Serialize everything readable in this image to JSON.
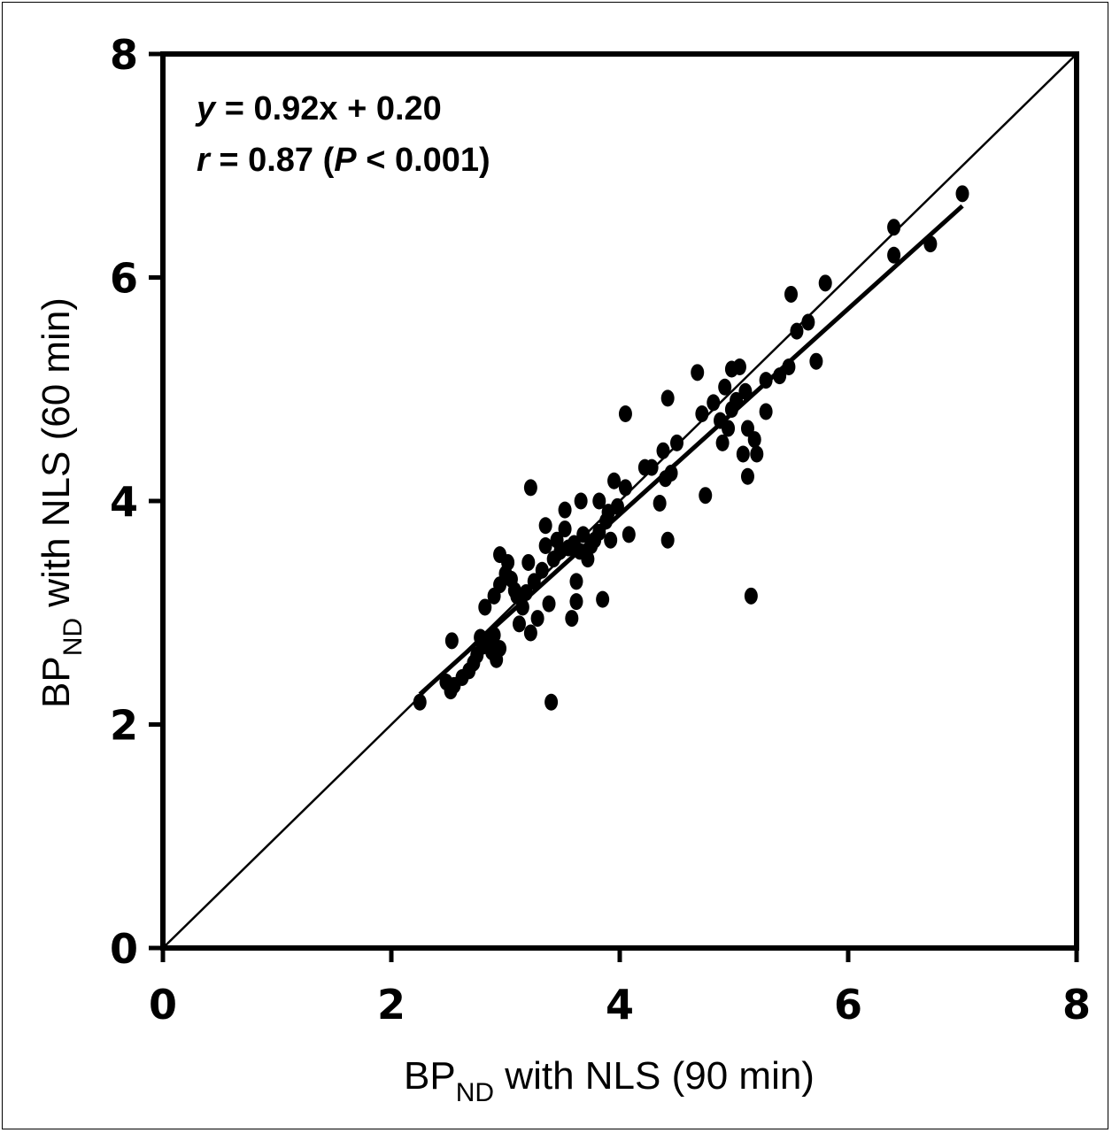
{
  "chart_data": {
    "type": "scatter",
    "title": "",
    "xlabel": {
      "main": "BP",
      "sub": "ND",
      "rest": " with NLS (90 min)"
    },
    "ylabel": {
      "main": "BP",
      "sub": "ND",
      "rest": " with NLS (60 min)"
    },
    "xlim": [
      0,
      8
    ],
    "ylim": [
      0,
      8
    ],
    "xticks": [
      "0",
      "2",
      "4",
      "6",
      "8"
    ],
    "yticks": [
      "0",
      "2",
      "4",
      "6",
      "8"
    ],
    "annotation": {
      "line1": {
        "var": "y",
        "rest": " = 0.92x + 0.20"
      },
      "line2": {
        "var": "r",
        "mid": " = 0.87 (",
        "var2": "P",
        "rest": " < 0.001)"
      }
    },
    "regression": {
      "slope": 0.92,
      "intercept": 0.2,
      "x_range": [
        2.25,
        7.0
      ]
    },
    "identity_line": {
      "x_range": [
        0,
        8
      ]
    },
    "points": [
      [
        2.25,
        2.2
      ],
      [
        2.48,
        2.38
      ],
      [
        2.52,
        2.3
      ],
      [
        2.55,
        2.35
      ],
      [
        2.53,
        2.75
      ],
      [
        2.62,
        2.42
      ],
      [
        2.68,
        2.48
      ],
      [
        2.72,
        2.55
      ],
      [
        2.75,
        2.62
      ],
      [
        2.78,
        2.78
      ],
      [
        2.8,
        2.7
      ],
      [
        2.82,
        3.05
      ],
      [
        2.85,
        2.72
      ],
      [
        2.88,
        2.65
      ],
      [
        2.9,
        2.8
      ],
      [
        2.92,
        2.58
      ],
      [
        2.95,
        2.68
      ],
      [
        2.9,
        3.15
      ],
      [
        2.95,
        3.25
      ],
      [
        2.95,
        3.52
      ],
      [
        3.0,
        3.35
      ],
      [
        3.02,
        3.45
      ],
      [
        3.05,
        3.3
      ],
      [
        3.08,
        3.2
      ],
      [
        3.1,
        3.15
      ],
      [
        3.12,
        2.9
      ],
      [
        3.15,
        3.05
      ],
      [
        3.18,
        3.18
      ],
      [
        3.2,
        3.45
      ],
      [
        3.22,
        2.82
      ],
      [
        3.22,
        4.12
      ],
      [
        3.25,
        3.28
      ],
      [
        3.28,
        2.95
      ],
      [
        3.32,
        3.38
      ],
      [
        3.35,
        3.6
      ],
      [
        3.35,
        3.78
      ],
      [
        3.38,
        3.08
      ],
      [
        3.4,
        2.2
      ],
      [
        3.42,
        3.48
      ],
      [
        3.45,
        3.65
      ],
      [
        3.48,
        3.55
      ],
      [
        3.52,
        3.75
      ],
      [
        3.52,
        3.92
      ],
      [
        3.55,
        3.58
      ],
      [
        3.58,
        2.95
      ],
      [
        3.6,
        3.62
      ],
      [
        3.62,
        3.28
      ],
      [
        3.62,
        3.1
      ],
      [
        3.65,
        3.55
      ],
      [
        3.66,
        4.0
      ],
      [
        3.68,
        3.7
      ],
      [
        3.72,
        3.48
      ],
      [
        3.75,
        3.6
      ],
      [
        3.78,
        3.65
      ],
      [
        3.82,
        3.72
      ],
      [
        3.82,
        4.0
      ],
      [
        3.85,
        3.12
      ],
      [
        3.88,
        3.82
      ],
      [
        3.9,
        3.9
      ],
      [
        3.92,
        3.65
      ],
      [
        3.95,
        4.18
      ],
      [
        3.98,
        3.95
      ],
      [
        4.05,
        4.12
      ],
      [
        4.08,
        3.7
      ],
      [
        4.05,
        4.78
      ],
      [
        4.22,
        4.3
      ],
      [
        4.28,
        4.3
      ],
      [
        4.35,
        3.98
      ],
      [
        4.38,
        4.45
      ],
      [
        4.4,
        4.2
      ],
      [
        4.42,
        3.65
      ],
      [
        4.42,
        4.92
      ],
      [
        4.45,
        4.25
      ],
      [
        4.5,
        4.52
      ],
      [
        4.68,
        5.15
      ],
      [
        4.72,
        4.78
      ],
      [
        4.75,
        4.05
      ],
      [
        4.82,
        4.88
      ],
      [
        4.88,
        4.72
      ],
      [
        4.9,
        4.52
      ],
      [
        4.92,
        5.02
      ],
      [
        4.95,
        4.65
      ],
      [
        4.98,
        4.82
      ],
      [
        4.98,
        5.18
      ],
      [
        5.02,
        4.9
      ],
      [
        5.05,
        5.2
      ],
      [
        5.08,
        4.42
      ],
      [
        5.1,
        4.98
      ],
      [
        5.12,
        4.22
      ],
      [
        5.12,
        4.65
      ],
      [
        5.15,
        3.15
      ],
      [
        5.18,
        4.55
      ],
      [
        5.2,
        4.42
      ],
      [
        5.28,
        4.8
      ],
      [
        5.28,
        5.08
      ],
      [
        5.4,
        5.12
      ],
      [
        5.48,
        5.2
      ],
      [
        5.5,
        5.85
      ],
      [
        5.55,
        5.52
      ],
      [
        5.65,
        5.6
      ],
      [
        5.72,
        5.25
      ],
      [
        5.8,
        5.95
      ],
      [
        6.4,
        6.45
      ],
      [
        6.4,
        6.2
      ],
      [
        6.72,
        6.3
      ],
      [
        7.0,
        6.75
      ]
    ]
  }
}
